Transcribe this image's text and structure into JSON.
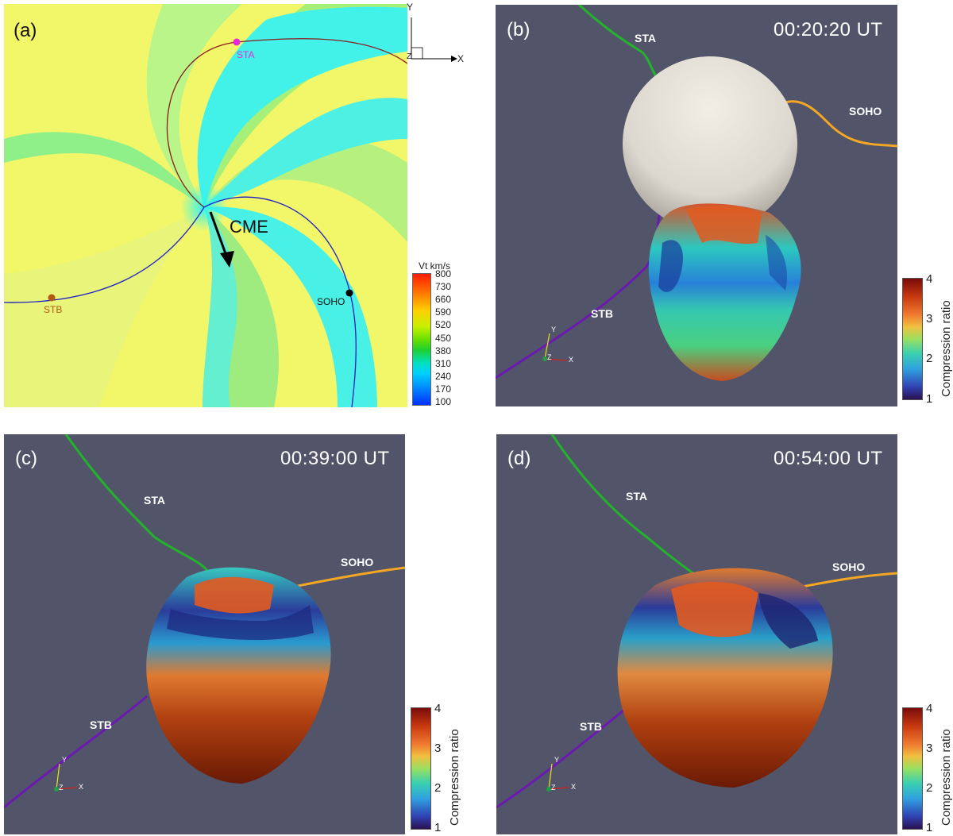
{
  "panels": {
    "a": {
      "label": "(a)",
      "cme_label": "CME",
      "spacecraft": {
        "sta": "STA",
        "stb": "STB",
        "soho": "SOHO"
      },
      "axes": {
        "x": "X",
        "y": "Y",
        "z": "Z"
      },
      "colorbar": {
        "title": "Vt km/s",
        "ticks": [
          "800",
          "730",
          "660",
          "590",
          "520",
          "450",
          "380",
          "310",
          "240",
          "170",
          "100"
        ]
      }
    },
    "b": {
      "label": "(b)",
      "time": "00:20:20 UT",
      "spacecraft": {
        "sta": "STA",
        "stb": "STB",
        "soho": "SOHO"
      }
    },
    "c": {
      "label": "(c)",
      "time": "00:39:00 UT",
      "spacecraft": {
        "sta": "STA",
        "stb": "STB",
        "soho": "SOHO"
      }
    },
    "d": {
      "label": "(d)",
      "time": "00:54:00 UT",
      "spacecraft": {
        "sta": "STA",
        "stb": "STB",
        "soho": "SOHO"
      }
    }
  },
  "compression_colorbar": {
    "title": "Compression ratio",
    "ticks": [
      "4",
      "3",
      "2",
      "1"
    ]
  },
  "mini_axes": {
    "x": "X",
    "y": "Y",
    "z": "Z"
  },
  "colors": {
    "background_3d": "#525569",
    "sta_line": "#22b22b",
    "soho_line": "#f5a623",
    "stb_line": "#5a1a9a",
    "sta_marker": "#e52ad9",
    "stb_marker": "#b05a10",
    "soho_marker": "#000000"
  }
}
